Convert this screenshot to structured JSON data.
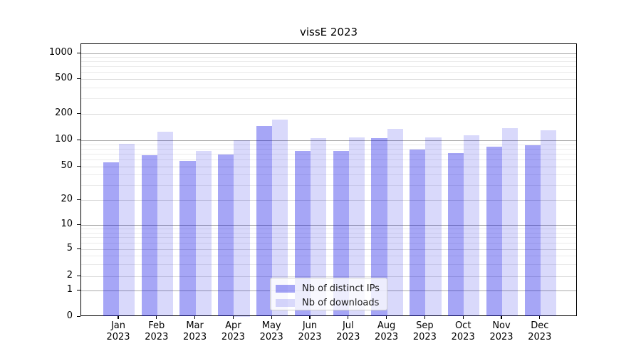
{
  "chart_data": {
    "type": "bar",
    "title": "vissE 2023",
    "categories": [
      "Jan",
      "Feb",
      "Mar",
      "Apr",
      "May",
      "Jun",
      "Jul",
      "Aug",
      "Sep",
      "Oct",
      "Nov",
      "Dec"
    ],
    "category_year": "2023",
    "series": [
      {
        "name": "Nb of distinct IPs",
        "color": "rgba(0,0,230,0.35)",
        "values": [
          56,
          68,
          58,
          69,
          145,
          75,
          76,
          106,
          78,
          72,
          84,
          88
        ]
      },
      {
        "name": "Nb of downloads",
        "color": "rgba(0,0,230,0.15)",
        "values": [
          91,
          125,
          75,
          100,
          172,
          105,
          108,
          136,
          108,
          115,
          138,
          130
        ]
      }
    ],
    "y_axis": {
      "scale": "symlog",
      "ticks": [
        0,
        1,
        2,
        5,
        10,
        20,
        50,
        100,
        200,
        500,
        1000
      ],
      "ylim": [
        0,
        1300
      ]
    },
    "x_axis": {
      "tick_label_format": "month-over-year"
    },
    "legend": {
      "position": "lower-center"
    },
    "grid": {
      "major": true,
      "minor": true
    },
    "colors": {
      "major_grid": "#a9a9a9",
      "mid_grid": "#dcdcdc",
      "minor_grid": "#ebebeb",
      "spine": "#000000"
    }
  }
}
